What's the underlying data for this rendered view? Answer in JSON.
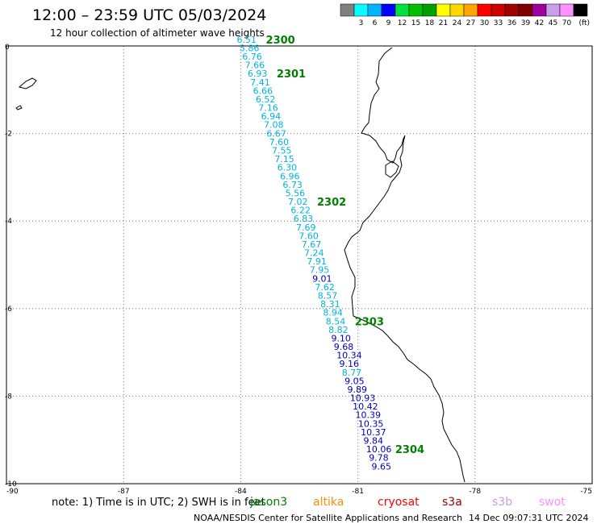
{
  "header": {
    "title": "12:00 – 23:59 UTC 05/03/2024",
    "subtitle": "12 hour collection of altimeter wave heights"
  },
  "color_scale": {
    "unit": "(ft)",
    "bins": [
      {
        "color": "#808080",
        "label": ""
      },
      {
        "color": "#00ffff",
        "label": "3"
      },
      {
        "color": "#00b4ff",
        "label": "6"
      },
      {
        "color": "#0000ff",
        "label": "9"
      },
      {
        "color": "#00e040",
        "label": "12"
      },
      {
        "color": "#00c000",
        "label": "15"
      },
      {
        "color": "#00a000",
        "label": "18"
      },
      {
        "color": "#ffff00",
        "label": "21"
      },
      {
        "color": "#ffd700",
        "label": "24"
      },
      {
        "color": "#ffa500",
        "label": "27"
      },
      {
        "color": "#ff0000",
        "label": "30"
      },
      {
        "color": "#d00000",
        "label": "33"
      },
      {
        "color": "#a00000",
        "label": "36"
      },
      {
        "color": "#800000",
        "label": "39"
      },
      {
        "color": "#a000a0",
        "label": "42"
      },
      {
        "color": "#c8a0e8",
        "label": "45"
      },
      {
        "color": "#ff90ff",
        "label": "70"
      },
      {
        "color": "#000000",
        "label": ""
      }
    ]
  },
  "axes": {
    "x_ticks": [
      "-90",
      "-87",
      "-84",
      "-81",
      "-78",
      "-75"
    ],
    "y_ticks": [
      "0",
      "-2",
      "-4",
      "-6",
      "-8",
      "-10"
    ],
    "lon_range": [
      -90,
      -75
    ],
    "lat_range": [
      -10,
      0
    ]
  },
  "colors": {
    "light": "#00b4e0",
    "dark": "#0000c0",
    "time": "#008000"
  },
  "track": {
    "lon_start": -84.1,
    "lat_start": 0.15,
    "lon_end": -80.65,
    "lat_end": -9.6,
    "points": [
      {
        "v": "6.51",
        "c": "light"
      },
      {
        "v": "5.86",
        "c": "light"
      },
      {
        "v": "6.76",
        "c": "light"
      },
      {
        "v": "7.66",
        "c": "light"
      },
      {
        "v": "6.93",
        "c": "light"
      },
      {
        "v": "7.41",
        "c": "light"
      },
      {
        "v": "6.66",
        "c": "light"
      },
      {
        "v": "6.52",
        "c": "light"
      },
      {
        "v": "7.16",
        "c": "light"
      },
      {
        "v": "6.94",
        "c": "light"
      },
      {
        "v": "7.08",
        "c": "light"
      },
      {
        "v": "6.67",
        "c": "light"
      },
      {
        "v": "7.60",
        "c": "light"
      },
      {
        "v": "7.55",
        "c": "light"
      },
      {
        "v": "7.15",
        "c": "light"
      },
      {
        "v": "6.30",
        "c": "light"
      },
      {
        "v": "6.96",
        "c": "light"
      },
      {
        "v": "6.73",
        "c": "light"
      },
      {
        "v": "5.56",
        "c": "light"
      },
      {
        "v": "7.02",
        "c": "light"
      },
      {
        "v": "6.22",
        "c": "light"
      },
      {
        "v": "6.83",
        "c": "light"
      },
      {
        "v": "7.69",
        "c": "light"
      },
      {
        "v": "7.60",
        "c": "light"
      },
      {
        "v": "7.67",
        "c": "light"
      },
      {
        "v": "7.24",
        "c": "light"
      },
      {
        "v": "7.91",
        "c": "light"
      },
      {
        "v": "7.95",
        "c": "light"
      },
      {
        "v": "9.01",
        "c": "dark"
      },
      {
        "v": "7.62",
        "c": "light"
      },
      {
        "v": "8.57",
        "c": "light"
      },
      {
        "v": "8.31",
        "c": "light"
      },
      {
        "v": "8.94",
        "c": "light"
      },
      {
        "v": "8.54",
        "c": "light"
      },
      {
        "v": "8.82",
        "c": "light"
      },
      {
        "v": "9.10",
        "c": "dark"
      },
      {
        "v": "9.68",
        "c": "dark"
      },
      {
        "v": "10.34",
        "c": "dark"
      },
      {
        "v": "9.16",
        "c": "dark"
      },
      {
        "v": "8.77",
        "c": "light"
      },
      {
        "v": "9.05",
        "c": "dark"
      },
      {
        "v": "9.89",
        "c": "dark"
      },
      {
        "v": "10.93",
        "c": "dark"
      },
      {
        "v": "10.42",
        "c": "dark"
      },
      {
        "v": "10.39",
        "c": "dark"
      },
      {
        "v": "10.35",
        "c": "dark"
      },
      {
        "v": "10.37",
        "c": "dark"
      },
      {
        "v": "9.84",
        "c": "dark"
      },
      {
        "v": "10.06",
        "c": "dark"
      },
      {
        "v": "9.78",
        "c": "dark"
      },
      {
        "v": "9.65",
        "c": "dark"
      }
    ],
    "time_marks": [
      {
        "label": "2300",
        "index": 0
      },
      {
        "label": "2301",
        "index": 4
      },
      {
        "label": "2302",
        "index": 19
      },
      {
        "label": "2303",
        "index": 33
      },
      {
        "label": "2304",
        "index": 48
      }
    ]
  },
  "footer": {
    "note": "note: 1) Time is in UTC; 2) SWH is in feet",
    "missions": [
      {
        "name": "jason3",
        "color": "#008000"
      },
      {
        "name": "altika",
        "color": "#ff8c00"
      },
      {
        "name": "cryosat",
        "color": "#ff0000"
      },
      {
        "name": "s3a",
        "color": "#a00000"
      },
      {
        "name": "s3b",
        "color": "#c8a0e8"
      },
      {
        "name": "swot",
        "color": "#ff90ff"
      }
    ],
    "credit": "NOAA/NESDIS Center for Satellite Applications and Research",
    "timestamp": "14 Dec 09:07:31 UTC 2024"
  }
}
